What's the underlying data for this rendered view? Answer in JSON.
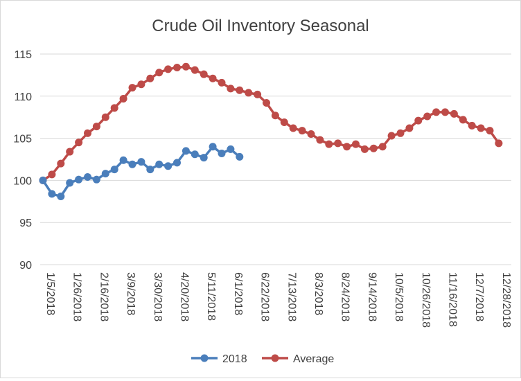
{
  "chart_data": {
    "type": "line",
    "title": "Crude Oil Inventory Seasonal",
    "xlabel": "",
    "ylabel": "",
    "ylim": [
      90,
      115
    ],
    "yticks": [
      90,
      95,
      100,
      105,
      110,
      115
    ],
    "grid": "horizontal",
    "legend_position": "bottom",
    "x_tick_labels": [
      "1/5/2018",
      "1/26/2018",
      "2/16/2018",
      "3/9/2018",
      "3/30/2018",
      "4/20/2018",
      "5/11/2018",
      "6/1/2018",
      "6/22/2018",
      "7/13/2018",
      "8/3/2018",
      "8/24/2018",
      "9/14/2018",
      "10/5/2018",
      "10/26/2018",
      "11/16/2018",
      "12/7/2018",
      "12/28/2018"
    ],
    "series": [
      {
        "name": "2018",
        "color": "#4a7ebb",
        "values": [
          100.0,
          98.4,
          98.1,
          99.7,
          100.1,
          100.4,
          100.1,
          100.8,
          101.3,
          102.4,
          101.9,
          102.2,
          101.3,
          101.9,
          101.7,
          102.1,
          103.5,
          103.1,
          102.7,
          104.0,
          103.2,
          103.7,
          102.8
        ]
      },
      {
        "name": "Average",
        "color": "#be4b48",
        "values": [
          100.0,
          100.7,
          102.0,
          103.4,
          104.5,
          105.6,
          106.4,
          107.5,
          108.6,
          109.7,
          111.0,
          111.4,
          112.1,
          112.8,
          113.2,
          113.4,
          113.5,
          113.1,
          112.6,
          112.1,
          111.6,
          110.9,
          110.7,
          110.4,
          110.2,
          109.2,
          107.7,
          106.9,
          106.2,
          105.9,
          105.5,
          104.8,
          104.3,
          104.4,
          104.0,
          104.3,
          103.7,
          103.8,
          104.0,
          105.3,
          105.6,
          106.2,
          107.1,
          107.6,
          108.1,
          108.1,
          107.9,
          107.2,
          106.5,
          106.2,
          105.9,
          104.4
        ]
      }
    ]
  }
}
